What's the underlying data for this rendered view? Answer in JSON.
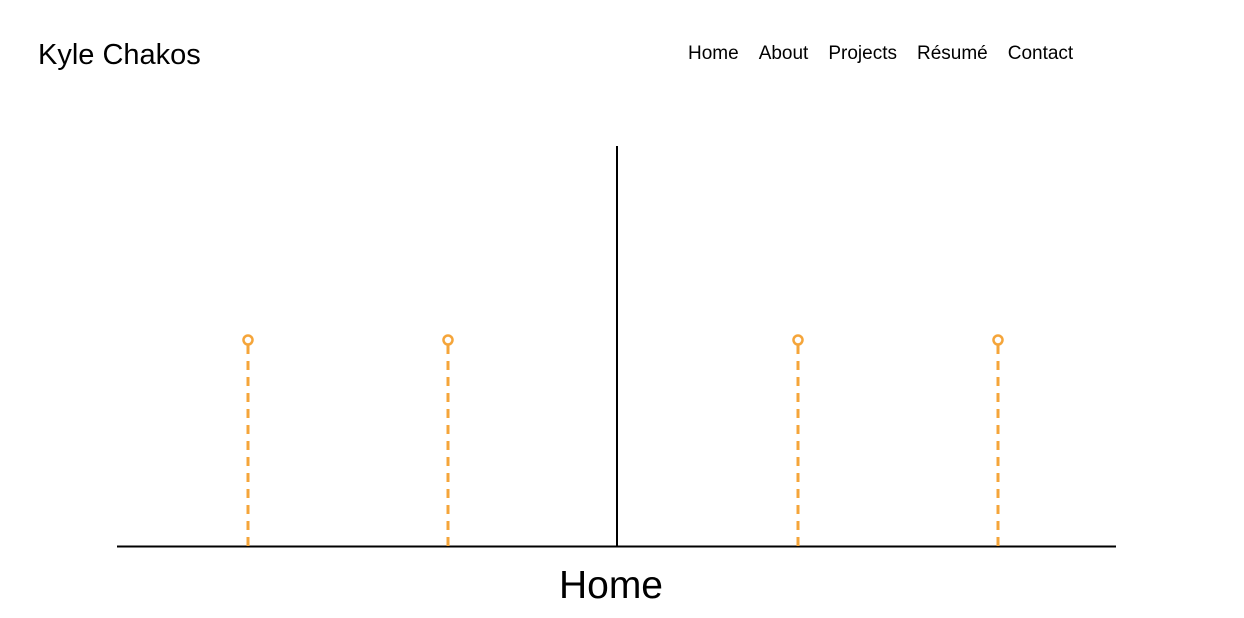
{
  "header": {
    "site_title": "Kyle Chakos",
    "nav": [
      {
        "label": "Home"
      },
      {
        "label": "About"
      },
      {
        "label": "Projects"
      },
      {
        "label": "Résumé"
      },
      {
        "label": "Contact"
      }
    ]
  },
  "timeline": {
    "section_label": "Home",
    "accent_color": "#f5a53a",
    "line_color": "#000000",
    "marker_count": 4
  }
}
